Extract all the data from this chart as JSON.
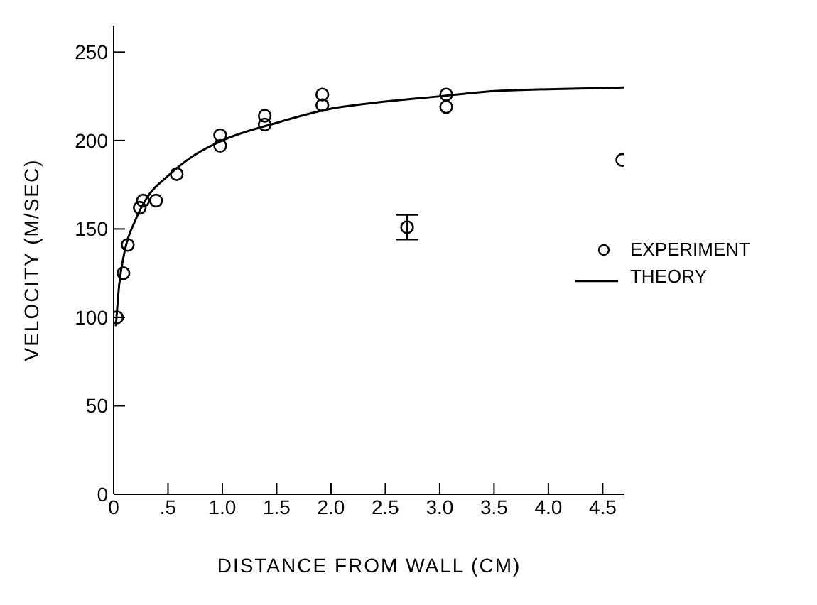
{
  "chart_data": {
    "type": "scatter",
    "xlabel": "DISTANCE FROM WALL (CM)",
    "ylabel": "VELOCITY (M/SEC)",
    "xlim": [
      0,
      4.7
    ],
    "ylim": [
      0,
      265
    ],
    "xticks": [
      0,
      {
        "value": 0.5,
        "label": ".5"
      },
      {
        "value": 1,
        "label": "1.0"
      },
      {
        "value": 1.5,
        "label": "1.5"
      },
      {
        "value": 2,
        "label": "2.0"
      },
      {
        "value": 2.5,
        "label": "2.5"
      },
      {
        "value": 3,
        "label": "3.0"
      },
      {
        "value": 3.5,
        "label": "3.5"
      },
      {
        "value": 4,
        "label": "4.0"
      },
      {
        "value": 4.5,
        "label": "4.5"
      }
    ],
    "yticks": [
      0,
      50,
      100,
      150,
      200,
      250
    ],
    "grid": false,
    "legend": "right",
    "series": [
      {
        "name": "EXPERIMENT",
        "marker": "circle",
        "color": "#000000",
        "x": [
          0.03,
          0.09,
          0.13,
          0.24,
          0.27,
          0.39,
          0.58,
          0.98,
          0.98,
          1.39,
          1.39,
          1.92,
          1.92,
          3.06,
          3.06,
          4.68
        ],
        "values": [
          100,
          125,
          141,
          162,
          166,
          166,
          181,
          203,
          197,
          214,
          209,
          226,
          220,
          226,
          219,
          189
        ]
      },
      {
        "marker": "circle",
        "color": "#000000",
        "x": [
          2.7
        ],
        "values": [
          151
        ],
        "errors": [
          7
        ]
      },
      {
        "name": "THEORY",
        "type": "line",
        "marker": "none",
        "line_style": "solid",
        "color": "#000000",
        "x": [
          0.02,
          0.05,
          0.1,
          0.2,
          0.3,
          0.5,
          0.75,
          1.0,
          1.5,
          2.0,
          2.5,
          3.0,
          3.5,
          4.0,
          4.7
        ],
        "values": [
          95,
          118,
          137,
          155,
          167,
          180,
          192,
          200,
          210,
          218,
          222,
          225,
          228,
          229,
          230
        ]
      }
    ]
  }
}
